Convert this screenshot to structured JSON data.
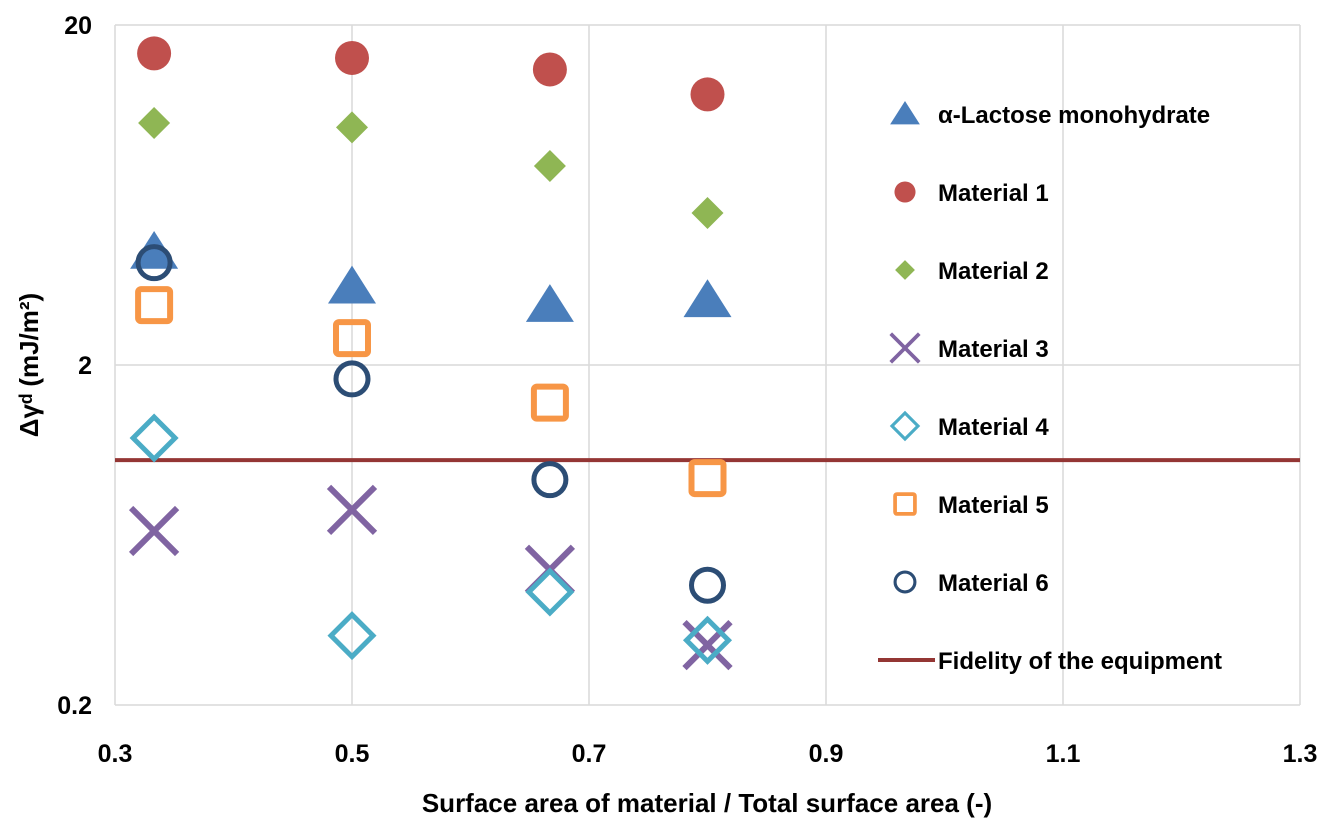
{
  "chart_data": {
    "type": "scatter",
    "xlabel": "Surface area of material / Total surface area (-)",
    "ylabel": "Δγᵈ (mJ/m²)",
    "xlim": [
      0.3,
      1.3
    ],
    "ylim": [
      0.2,
      20
    ],
    "y_scale": "log",
    "x_ticks": [
      "0.3",
      "0.5",
      "0.7",
      "0.9",
      "1.1",
      "1.3"
    ],
    "y_ticks": [
      "0.2",
      "2",
      "20"
    ],
    "grid": true,
    "legend_position": "right",
    "series": [
      {
        "name": "α-Lactose monohydrate",
        "marker": "triangle",
        "color": "#4a7ebb",
        "points": [
          [
            0.333,
            4.3
          ],
          [
            0.5,
            3.4
          ],
          [
            0.667,
            3.0
          ],
          [
            0.8,
            3.1
          ]
        ]
      },
      {
        "name": "Material 1",
        "marker": "circle",
        "color": "#c0504d",
        "points": [
          [
            0.333,
            16.5
          ],
          [
            0.5,
            16.0
          ],
          [
            0.667,
            14.8
          ],
          [
            0.8,
            12.5
          ]
        ]
      },
      {
        "name": "Material 2",
        "marker": "diamond",
        "color": "#8fb654",
        "points": [
          [
            0.333,
            10.3
          ],
          [
            0.5,
            10.0
          ],
          [
            0.667,
            7.7
          ],
          [
            0.8,
            5.6
          ]
        ]
      },
      {
        "name": "Material 3",
        "marker": "x",
        "color": "#8064a2",
        "points": [
          [
            0.333,
            0.65
          ],
          [
            0.5,
            0.75
          ],
          [
            0.667,
            0.5
          ],
          [
            0.8,
            0.3
          ]
        ]
      },
      {
        "name": "Material 4",
        "marker": "diamond-open",
        "color": "#4bacc6",
        "points": [
          [
            0.333,
            1.22
          ],
          [
            0.5,
            0.32
          ],
          [
            0.667,
            0.43
          ],
          [
            0.8,
            0.31
          ]
        ]
      },
      {
        "name": "Material 5",
        "marker": "square-open",
        "color": "#f79646",
        "points": [
          [
            0.333,
            3.0
          ],
          [
            0.5,
            2.4
          ],
          [
            0.667,
            1.55
          ],
          [
            0.8,
            0.93
          ]
        ]
      },
      {
        "name": "Material 6",
        "marker": "circle-open",
        "color": "#2c4d75",
        "points": [
          [
            0.333,
            4.0
          ],
          [
            0.5,
            1.82
          ],
          [
            0.667,
            0.92
          ],
          [
            0.8,
            0.45
          ]
        ]
      }
    ],
    "reference_line": {
      "name": "Fidelity of the equipment",
      "y": 1.05,
      "color": "#943634"
    }
  }
}
